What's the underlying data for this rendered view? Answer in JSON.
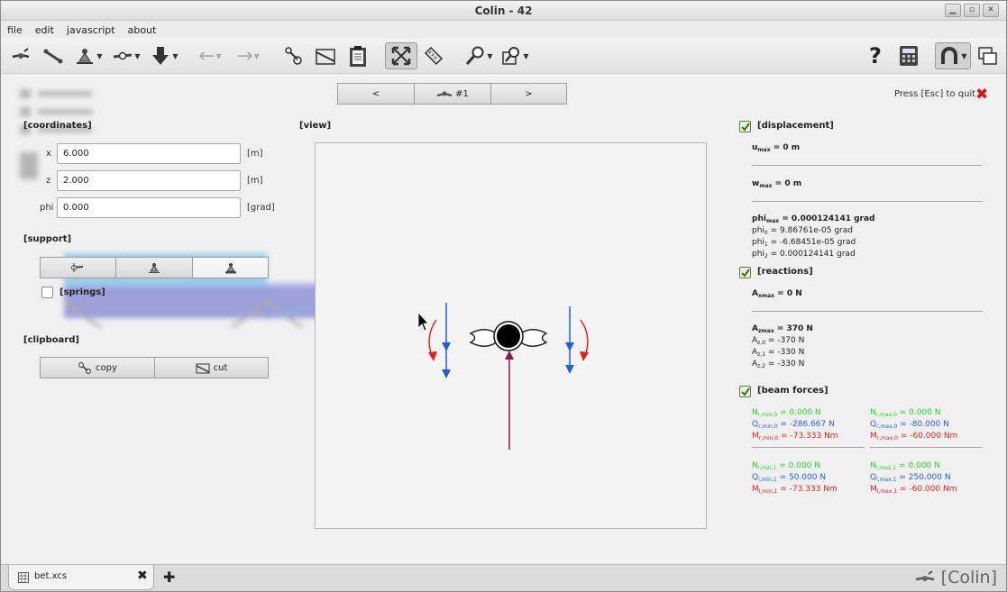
{
  "window": {
    "title": "Colin - 42"
  },
  "menu": [
    "file",
    "edit",
    "javascript",
    "about"
  ],
  "nav": {
    "prev": "<",
    "current": "#1",
    "next": ">"
  },
  "quit_hint": "Press [Esc] to quit",
  "coordinates": {
    "header": "[coordinates]",
    "x_label": "x",
    "x_value": "6.000",
    "x_unit": "[m]",
    "z_label": "z",
    "z_value": "2.000",
    "z_unit": "[m]",
    "phi_label": "phi",
    "phi_value": "0.000",
    "phi_unit": "[grad]"
  },
  "support": {
    "header": "[support]",
    "springs_label": "[springs]",
    "selected_index": 2
  },
  "clipboard": {
    "header": "[clipboard]",
    "copy_label": "copy",
    "cut_label": "cut"
  },
  "view": {
    "header": "[view]"
  },
  "displacement": {
    "header": "[displacement]",
    "u_line": "= 0 m",
    "w_line": "= 0 m",
    "phi_line": "= 0.000124141 grad",
    "phi0": "= 9.86761e-05 grad",
    "phi1": "= -6.68451e-05 grad",
    "phi2": "= 0.000124141 grad"
  },
  "reactions": {
    "header": "[reactions]",
    "axmax": "= 0 N",
    "azmax": "= 370 N",
    "az0": "= -370 N",
    "az1": "= -330 N",
    "az2": "= -330 N"
  },
  "beam_forces": {
    "header": "[beam forces]",
    "blocks": [
      {
        "N": "= 0.000 N",
        "Q": "= -286.667 N",
        "M": "= -73.333 Nm"
      },
      {
        "N": "= 0.000 N",
        "Q": "= -80.000 N",
        "M": "= -60.000 Nm"
      },
      {
        "N": "= 0.000 N",
        "Q": "= 50.000 N",
        "M": "= -73.333 Nm"
      },
      {
        "N": "= 0.000 N",
        "Q": "= 250.000 N",
        "M": "= -60.000 Nm"
      }
    ]
  },
  "tabs": [
    {
      "label": "bet.xcs"
    }
  ],
  "brand": "[Colin]",
  "colors": {
    "normal": "#27d427",
    "shear": "#1f5fe0",
    "moment": "#e02020",
    "reaction": "#8b1a4a"
  }
}
